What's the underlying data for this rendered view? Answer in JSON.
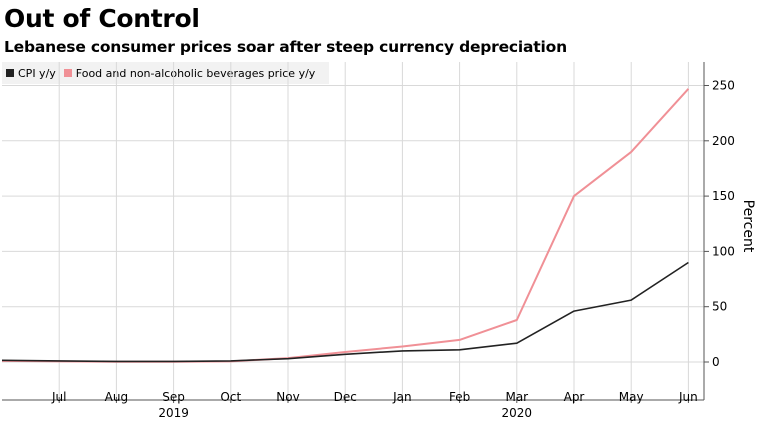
{
  "header": {
    "title": "Out of Control",
    "subtitle": "Lebanese consumer prices soar after steep currency depreciation"
  },
  "colors": {
    "cpi": "#222222",
    "food": "#f09096",
    "grid": "#d9d9d9",
    "axis": "#555555"
  },
  "chart_data": {
    "type": "line",
    "title": "Out of Control",
    "subtitle": "Lebanese consumer prices soar after steep currency depreciation",
    "xlabel": "",
    "ylabel": "Percent",
    "x": [
      "Jun 2019",
      "Jul 2019",
      "Aug 2019",
      "Sep 2019",
      "Oct 2019",
      "Nov 2019",
      "Dec 2019",
      "Jan 2020",
      "Feb 2020",
      "Mar 2020",
      "Apr 2020",
      "May 2020",
      "Jun 2020"
    ],
    "tick_labels": [
      "Jul",
      "Aug",
      "Sep",
      "Oct",
      "Nov",
      "Dec",
      "Jan",
      "Feb",
      "Mar",
      "Apr",
      "May",
      "Jun"
    ],
    "year_labels": [
      "2019",
      "2020"
    ],
    "yticks": [
      0,
      50,
      100,
      150,
      200,
      250
    ],
    "ylim": [
      -15,
      270
    ],
    "legend_position": "top-left",
    "grid": true,
    "series": [
      {
        "name": "CPI y/y",
        "values": [
          1.5,
          1,
          0.5,
          0.5,
          1,
          3,
          7,
          10,
          11,
          17,
          46,
          56,
          90
        ]
      },
      {
        "name": "Food and non-alcoholic beverages price y/y",
        "values": [
          1,
          0.5,
          0.2,
          0.2,
          0.5,
          3.5,
          9,
          14,
          20,
          38,
          150,
          190,
          247
        ]
      }
    ]
  }
}
